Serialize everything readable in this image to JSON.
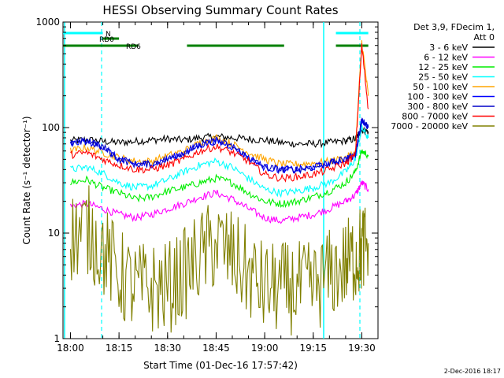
{
  "chart_data": {
    "type": "line",
    "title": "HESSI Observing Summary Count Rates",
    "xlabel": "Start Time (01-Dec-16 17:57:42)",
    "ylabel": "Count Rate (s⁻¹ detector⁻¹)",
    "yscale": "log",
    "ylim": [
      1,
      1000
    ],
    "xlim": [
      "17:57:42",
      "19:35:00"
    ],
    "x_ticks": [
      "18:00",
      "18:15",
      "18:30",
      "18:45",
      "19:00",
      "19:15",
      "19:30"
    ],
    "y_ticks": [
      "1",
      "10",
      "100",
      "1000"
    ],
    "legend_header": [
      "Det 3,9, FDecim 1,",
      "Att 0"
    ],
    "legend_position": "right",
    "x": [
      "18:00",
      "18:05",
      "18:10",
      "18:15",
      "18:20",
      "18:25",
      "18:30",
      "18:35",
      "18:40",
      "18:45",
      "18:50",
      "18:55",
      "19:00",
      "19:05",
      "19:10",
      "19:15",
      "19:20",
      "19:25",
      "19:28",
      "19:30",
      "19:32"
    ],
    "series": [
      {
        "name": "3 - 6 keV",
        "color": "#000000",
        "values": [
          75,
          77,
          74,
          72,
          74,
          76,
          78,
          76,
          80,
          82,
          80,
          78,
          76,
          72,
          70,
          70,
          72,
          75,
          78,
          95,
          92
        ]
      },
      {
        "name": "6 - 12 keV",
        "color": "#ff00ff",
        "values": [
          18,
          19,
          17,
          15,
          14,
          15,
          17,
          19,
          22,
          24,
          21,
          17,
          14,
          13,
          14,
          15,
          17,
          20,
          23,
          30,
          26
        ]
      },
      {
        "name": "12 - 25 keV",
        "color": "#00ee00",
        "values": [
          30,
          32,
          27,
          24,
          21,
          22,
          25,
          27,
          30,
          33,
          30,
          24,
          20,
          19,
          20,
          22,
          25,
          30,
          38,
          60,
          55
        ]
      },
      {
        "name": "25 - 50 keV",
        "color": "#00ffff",
        "values": [
          40,
          42,
          37,
          30,
          27,
          28,
          32,
          38,
          44,
          48,
          42,
          33,
          26,
          24,
          25,
          27,
          30,
          38,
          50,
          100,
          80
        ]
      },
      {
        "name": "50 - 100 keV",
        "color": "#ffa500",
        "values": [
          60,
          65,
          58,
          52,
          48,
          48,
          54,
          60,
          72,
          80,
          70,
          58,
          50,
          45,
          45,
          46,
          48,
          52,
          58,
          650,
          200
        ]
      },
      {
        "name": "100 - 300 keV",
        "color": "#0000ff",
        "values": [
          70,
          74,
          66,
          50,
          45,
          45,
          50,
          58,
          68,
          75,
          66,
          52,
          42,
          40,
          40,
          42,
          46,
          50,
          55,
          120,
          100
        ]
      },
      {
        "name": "300 - 800 keV",
        "color": "#0000c8",
        "values": [
          70,
          74,
          66,
          50,
          45,
          45,
          50,
          58,
          68,
          75,
          66,
          52,
          42,
          40,
          40,
          42,
          46,
          50,
          55,
          120,
          100
        ]
      },
      {
        "name": "800 - 7000 keV",
        "color": "#ff0000",
        "values": [
          55,
          58,
          50,
          44,
          40,
          40,
          44,
          50,
          60,
          66,
          58,
          48,
          36,
          33,
          34,
          36,
          40,
          46,
          55,
          600,
          150
        ]
      },
      {
        "name": "7000 - 20000 keV",
        "color": "#808000",
        "values": [
          9,
          11,
          7,
          4,
          3,
          3,
          3,
          4,
          6,
          8,
          6,
          4,
          3,
          3,
          3,
          3,
          4,
          5,
          6,
          7,
          8
        ]
      }
    ],
    "annotations": [
      {
        "label": "N",
        "color": "#00ffff",
        "segments": [
          [
            "17:57:42",
            "18:10"
          ],
          [
            "19:22",
            "19:32"
          ]
        ]
      },
      {
        "label": "RD0",
        "color": "#008000",
        "segments": [
          [
            "18:10",
            "18:15"
          ]
        ]
      },
      {
        "label": "RD6",
        "color": "#008000",
        "segments": [
          [
            "17:57:42",
            "18:21"
          ],
          [
            "18:36",
            "19:06"
          ],
          [
            "19:22",
            "19:32"
          ]
        ]
      }
    ],
    "stamp": "2-Dec-2016 18:17"
  },
  "colors": {
    "vertical_solid": "#00ffff",
    "vertical_dashed": "#00ffff"
  }
}
